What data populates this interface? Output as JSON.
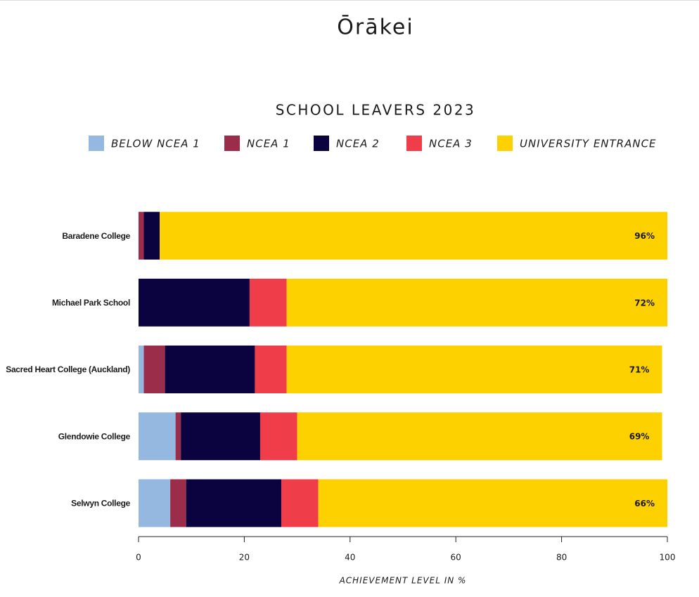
{
  "header": {
    "title": "Ōrākei"
  },
  "chart_data": {
    "type": "stacked-barh",
    "title": "SCHOOL LEAVERS 2023",
    "categories": [
      "Baradene College",
      "Michael Park School",
      "Sacred Heart College (Auckland)",
      "Glendowie College",
      "Selwyn College"
    ],
    "series": [
      {
        "name": "BELOW NCEA 1",
        "color": "#94b8e0",
        "values": [
          0,
          0,
          1,
          7,
          6
        ]
      },
      {
        "name": "NCEA 1",
        "color": "#9b2c4a",
        "values": [
          1,
          0,
          4,
          1,
          3
        ]
      },
      {
        "name": "NCEA 2",
        "color": "#0a0340",
        "values": [
          3,
          21,
          17,
          15,
          18
        ]
      },
      {
        "name": "NCEA 3",
        "color": "#ef3e4a",
        "values": [
          0,
          7,
          6,
          7,
          7
        ]
      },
      {
        "name": "UNIVERSITY ENTRANCE",
        "color": "#fdd000",
        "values": [
          96,
          72,
          71,
          69,
          66
        ],
        "value_labels": [
          "96%",
          "72%",
          "71%",
          "69%",
          "66%"
        ]
      }
    ],
    "x_label": "ACHIEVEMENT LEVEL IN %",
    "xlim": [
      0,
      100
    ],
    "xticks": [
      0,
      20,
      40,
      60,
      80,
      100
    ]
  }
}
